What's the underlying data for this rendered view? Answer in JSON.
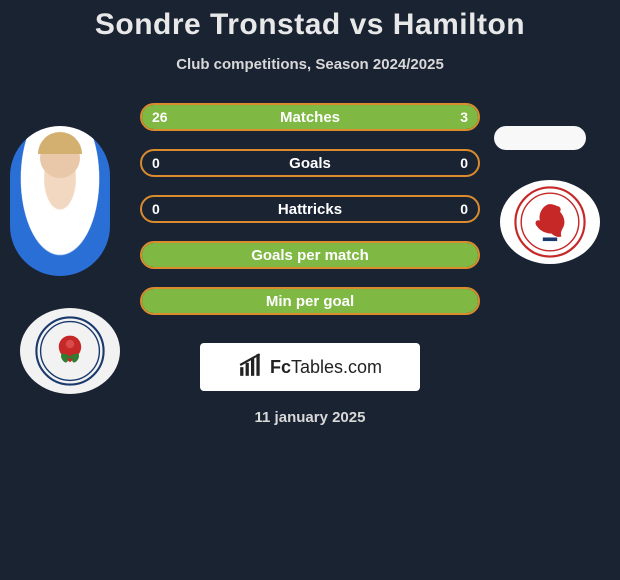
{
  "header": {
    "title": "Sondre Tronstad vs Hamilton",
    "subtitle": "Club competitions, Season 2024/2025"
  },
  "colors": {
    "accent_green": "#7fb843",
    "border_orange": "#d98b2e",
    "bg": "#1a2332",
    "text_light": "#e8e8e8"
  },
  "stats": [
    {
      "label": "Matches",
      "left_value": "26",
      "right_value": "3",
      "left_fill_pct": 80,
      "right_fill_pct": 20,
      "left_fill_color": "#7fb843",
      "right_fill_color": "#7fb843",
      "has_values": true
    },
    {
      "label": "Goals",
      "left_value": "0",
      "right_value": "0",
      "left_fill_pct": 0,
      "right_fill_pct": 0,
      "left_fill_color": "#7fb843",
      "right_fill_color": "#7fb843",
      "has_values": true
    },
    {
      "label": "Hattricks",
      "left_value": "0",
      "right_value": "0",
      "left_fill_pct": 0,
      "right_fill_pct": 0,
      "left_fill_color": "#7fb843",
      "right_fill_color": "#7fb843",
      "has_values": true
    },
    {
      "label": "Goals per match",
      "left_value": "",
      "right_value": "",
      "left_fill_pct": 100,
      "right_fill_pct": 0,
      "left_fill_color": "#7fb843",
      "right_fill_color": "#7fb843",
      "has_values": false
    },
    {
      "label": "Min per goal",
      "left_value": "",
      "right_value": "",
      "left_fill_pct": 100,
      "right_fill_pct": 0,
      "left_fill_color": "#7fb843",
      "right_fill_color": "#7fb843",
      "has_values": false
    }
  ],
  "footer": {
    "brand_prefix": "Fc",
    "brand_suffix": "Tables.com",
    "date": "11 january 2025"
  },
  "left_player": {
    "name": "Sondre Tronstad",
    "club_crest": "blackburn-rovers"
  },
  "right_player": {
    "name": "Hamilton",
    "club_crest": "middlesbrough"
  }
}
